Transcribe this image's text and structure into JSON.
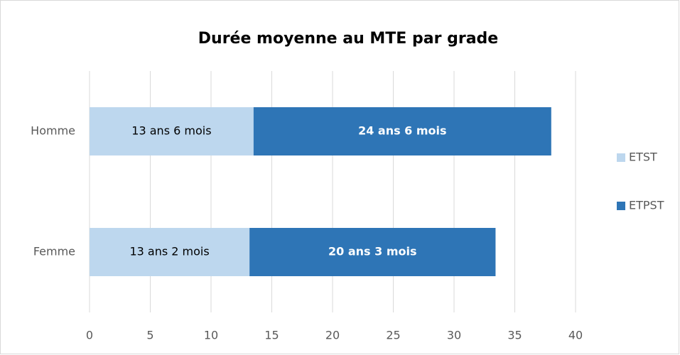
{
  "chart_data": {
    "type": "stacked_barh",
    "title": "Durée moyenne au MTE par grade",
    "categories": [
      "Homme",
      "Femme"
    ],
    "series": [
      {
        "name": "ETST",
        "color": "#bdd7ee",
        "values": [
          13.5,
          13.1667
        ],
        "value_labels": [
          "13 ans 6 mois",
          "13 ans 2 mois"
        ]
      },
      {
        "name": "ETPST",
        "color": "#2e75b6",
        "values": [
          24.5,
          20.25
        ],
        "value_labels": [
          "24 ans 6 mois",
          "20 ans 3 mois"
        ]
      }
    ],
    "xlim": [
      0,
      40
    ],
    "xticks": [
      0,
      5,
      10,
      15,
      20,
      25,
      30,
      35,
      40
    ],
    "grid": true,
    "legend": "right"
  }
}
